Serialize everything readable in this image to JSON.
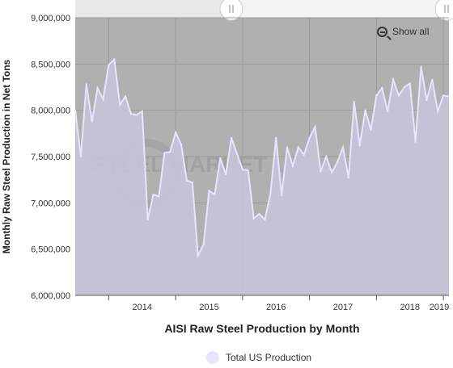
{
  "chart_data": {
    "type": "area",
    "xlabel": "AISI Raw Steel Production by Month",
    "ylabel": "Monthly Raw Steel Production in Net Tons",
    "ylim": [
      6000000,
      9000000
    ],
    "yticks": [
      6000000,
      6500000,
      7000000,
      7500000,
      8000000,
      8500000,
      9000000
    ],
    "ytick_labels": [
      "6,000,000",
      "6,500,000",
      "7,000,000",
      "7,500,000",
      "8,000,000",
      "8,500,000",
      "9,000,000"
    ],
    "xticks": [
      "2014",
      "2015",
      "2016",
      "2017",
      "2018",
      "2019"
    ],
    "legend_position": "bottom-center",
    "grid": true,
    "colors": {
      "fill": "#c8c7dc",
      "line": "#e6e4ff",
      "background": "#b0b0b0",
      "legend_swatch": "#e6e4ff"
    },
    "series": [
      {
        "name": "Total US Production",
        "start": "2013-07",
        "values": [
          8000000,
          7500000,
          8280000,
          7880000,
          8240000,
          8120000,
          8490000,
          8550000,
          8060000,
          8150000,
          7960000,
          7950000,
          7990000,
          6820000,
          7090000,
          7070000,
          7540000,
          7550000,
          7760000,
          7630000,
          7240000,
          7220000,
          6430000,
          6550000,
          7130000,
          7090000,
          7480000,
          7310000,
          7700000,
          7530000,
          7360000,
          7350000,
          6830000,
          6880000,
          6820000,
          7100000,
          7700000,
          7080000,
          7600000,
          7400000,
          7600000,
          7520000,
          7700000,
          7820000,
          7340000,
          7500000,
          7330000,
          7440000,
          7600000,
          7270000,
          8090000,
          7620000,
          8000000,
          7790000,
          8160000,
          8240000,
          7990000,
          8330000,
          8160000,
          8250000,
          8290000,
          7660000,
          8470000,
          8110000,
          8330000,
          7990000,
          8160000,
          8150000
        ]
      }
    ]
  },
  "ui": {
    "show_all_label": "Show all",
    "legend_label": "Total US Production"
  }
}
